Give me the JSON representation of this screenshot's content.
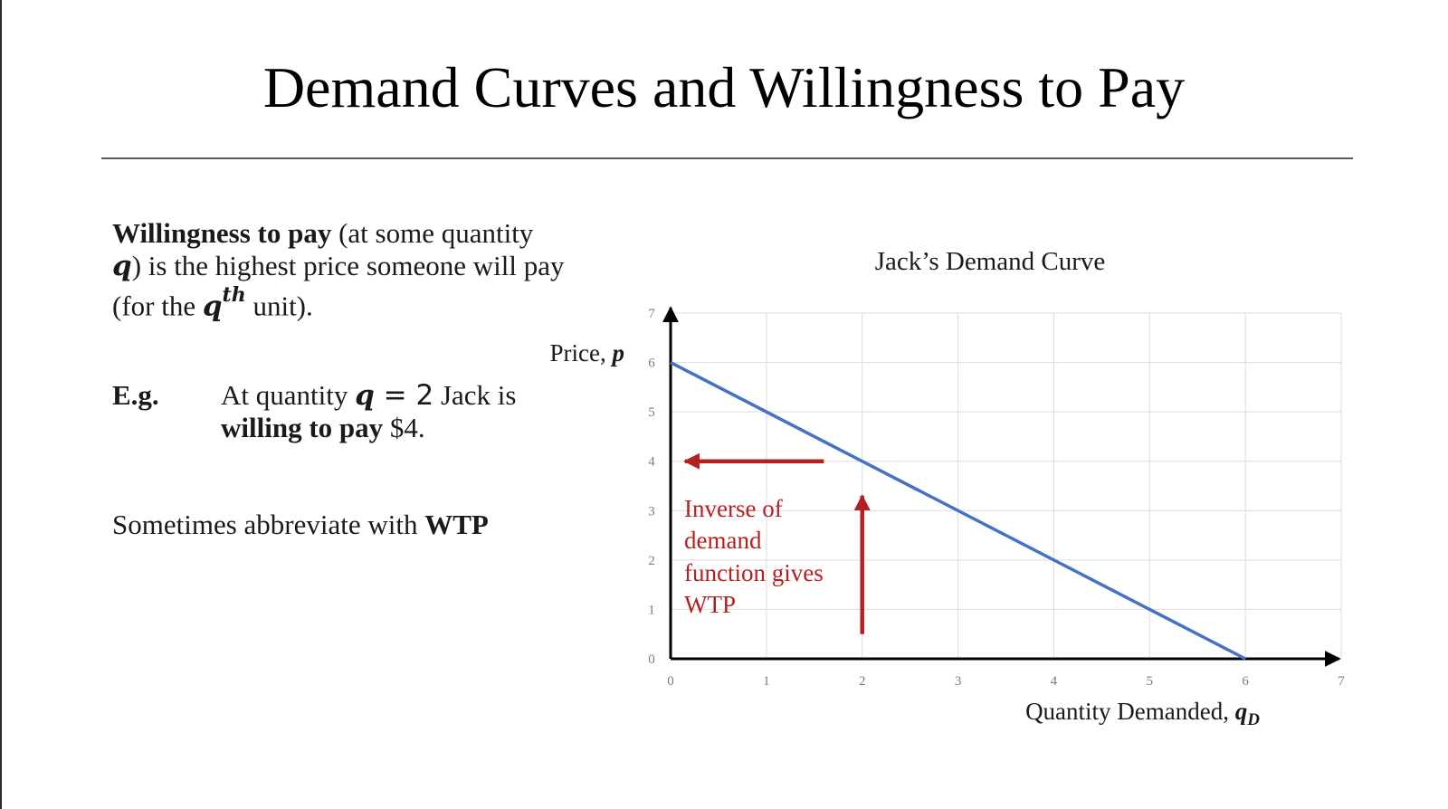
{
  "slide": {
    "title": "Demand Curves and Willingness to Pay",
    "definition": {
      "term": "Willingness to pay",
      "part1": " (at some quantity ",
      "var_q": "q",
      "part2": ") is the highest price someone will pay (for the ",
      "var_qth_base": "q",
      "var_qth_sup": "th",
      "part3": " unit)."
    },
    "example": {
      "label": "E.g.",
      "part1": "At quantity ",
      "var_q": "q",
      "equals": " = 2",
      "part2": " Jack is ",
      "bold": "willing to pay",
      "part3": " $4."
    },
    "abbrev": {
      "text": "Sometimes abbreviate with ",
      "bold": "WTP"
    }
  },
  "chart_data": {
    "type": "line",
    "title": "Jack’s Demand Curve",
    "xlabel": "Quantity Demanded, ",
    "xlabel_var": "q",
    "xlabel_sub": "D",
    "ylabel": "Price, ",
    "ylabel_var": "p",
    "xlim": [
      0,
      7
    ],
    "ylim": [
      0,
      7
    ],
    "xticks": [
      0,
      1,
      2,
      3,
      4,
      5,
      6,
      7
    ],
    "yticks": [
      0,
      1,
      2,
      3,
      4,
      5,
      6,
      7
    ],
    "grid": true,
    "series": [
      {
        "x": [
          0,
          6
        ],
        "y": [
          6,
          0
        ],
        "color": "#4472c4"
      }
    ],
    "annotations": {
      "text_lines": [
        "Inverse of",
        "demand",
        "function gives",
        "WTP"
      ],
      "color": "#b22222",
      "arrow_up": {
        "x": 2,
        "from_y": 0.5,
        "to_y": 3.3
      },
      "arrow_left": {
        "y": 4,
        "from_x": 1.6,
        "to_x": 0.15
      }
    },
    "colors": {
      "grid": "#dcdcdc",
      "axis": "#000000",
      "tick": "#7a7a7a"
    }
  }
}
